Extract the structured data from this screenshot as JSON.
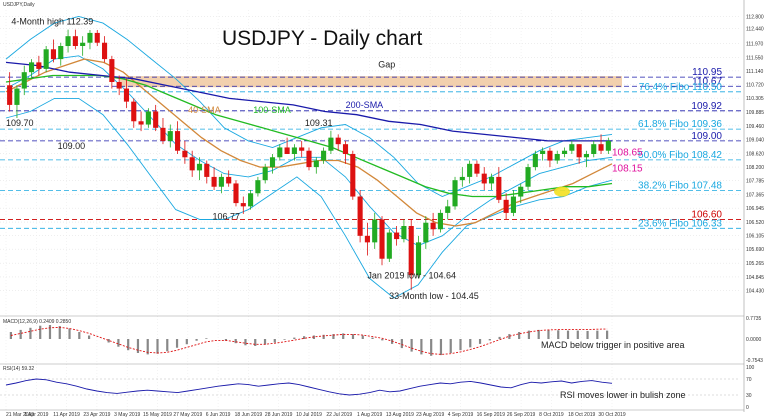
{
  "chart_data": {
    "type": "candlestick",
    "symbol_label": "USDJPY,Daily",
    "title": "USDJPY - Daily chart",
    "date_labels": [
      "21 Mar 2019",
      "1 Apr 2019",
      "11 Apr 2019",
      "23 Apr 2019",
      "3 May 2019",
      "15 May 2019",
      "27 May 2019",
      "6 Jun 2019",
      "18 Jun 2019",
      "28 Jun 2019",
      "10 Jul 2019",
      "22 Jul 2019",
      "1 Aug 2019",
      "13 Aug 2019",
      "23 Aug 2019",
      "4 Sep 2019",
      "16 Sep 2019",
      "26 Sep 2019",
      "8 Oct 2019",
      "18 Oct 2019",
      "30 Oct 2019"
    ],
    "price_axis": [
      112.8,
      112.44,
      111.97,
      111.55,
      111.14,
      110.72,
      110.305,
      109.885,
      109.46,
      109.04,
      108.62,
      108.2,
      107.785,
      107.365,
      106.945,
      106.52,
      106.105,
      105.69,
      105.265,
      104.845,
      104.43
    ],
    "price_range": [
      104.2,
      113.0
    ],
    "levels": [
      {
        "label": "110.95",
        "value": 110.95,
        "color": "#1a1aaa",
        "style": "dashed"
      },
      {
        "label": "110.67",
        "value": 110.67,
        "color": "#1a1aaa",
        "style": "dashed"
      },
      {
        "label": "76.4% Fibo 110.50",
        "value": 110.5,
        "color": "#1aa8e0",
        "style": "dashed"
      },
      {
        "label": "109.92",
        "value": 109.92,
        "color": "#1a1aaa",
        "style": "dashed"
      },
      {
        "label": "61.8% Fibo 109.36",
        "value": 109.36,
        "color": "#1aa8e0",
        "style": "dashed"
      },
      {
        "label": "109.00",
        "value": 109.0,
        "color": "#1a1aaa",
        "style": "dashed"
      },
      {
        "label": "50.0% Fibo 108.42",
        "value": 108.42,
        "color": "#1aa8e0",
        "style": "dashed"
      },
      {
        "label": "38.2% Fibo 107.48",
        "value": 107.48,
        "color": "#1aa8e0",
        "style": "dashed"
      },
      {
        "label": "106.60",
        "value": 106.6,
        "color": "#cc0000",
        "style": "dashed"
      },
      {
        "label": "23.6% Fibo 106.33",
        "value": 106.33,
        "color": "#1aa8e0",
        "style": "dashed"
      }
    ],
    "side_labels": [
      {
        "label": "108.65",
        "value": 108.65,
        "color": "#e0119d"
      },
      {
        "label": "108.15",
        "value": 108.15,
        "color": "#e0119d"
      }
    ],
    "annotations": [
      {
        "text": "4-Month high 112.39",
        "x": "23 Mar 2019",
        "y": 112.55
      },
      {
        "text": "109.70",
        "x": "21 Mar 2019",
        "y": 109.45
      },
      {
        "text": "109.00",
        "x": "9 Apr 2019",
        "y": 108.75
      },
      {
        "text": "106.77",
        "x": "5 Jun 2019",
        "y": 106.6
      },
      {
        "text": "109.31",
        "x": "9 Jul 2019",
        "y": 109.45
      },
      {
        "text": "Jan 2019 low - 104.64",
        "x": "1 Aug 2019",
        "y": 104.8
      },
      {
        "text": "33-Month low - 104.45",
        "x": "9 Aug 2019",
        "y": 104.17
      },
      {
        "text": "Gap",
        "x": "5 Aug 2019",
        "y": 111.25
      }
    ],
    "ma_labels": [
      {
        "text": "40-SMA",
        "color": "#d2883a",
        "x": "27 May 2019",
        "y": 109.85
      },
      {
        "text": "100-SMA",
        "color": "#22bb22",
        "x": "20 Jun 2019",
        "y": 109.85
      },
      {
        "text": "200-SMA",
        "color": "#1a1aaa",
        "x": "24 Jul 2019",
        "y": 110.0
      }
    ],
    "series": [
      {
        "name": "USDJPY",
        "type": "candlestick",
        "ohlc": [
          [
            110.7,
            111.1,
            109.9,
            110.1
          ],
          [
            110.1,
            110.7,
            109.7,
            110.6
          ],
          [
            110.6,
            111.3,
            110.4,
            111.1
          ],
          [
            111.1,
            111.5,
            110.9,
            111.4
          ],
          [
            111.4,
            111.6,
            111.0,
            111.2
          ],
          [
            111.2,
            111.9,
            111.1,
            111.8
          ],
          [
            111.8,
            112.1,
            111.4,
            111.5
          ],
          [
            111.5,
            112.0,
            111.3,
            111.9
          ],
          [
            111.9,
            112.4,
            111.7,
            112.2
          ],
          [
            112.2,
            112.4,
            111.8,
            111.9
          ],
          [
            111.9,
            112.2,
            111.6,
            112.0
          ],
          [
            112.0,
            112.39,
            111.8,
            112.3
          ],
          [
            112.3,
            112.39,
            111.9,
            112.0
          ],
          [
            112.0,
            112.2,
            111.4,
            111.5
          ],
          [
            111.5,
            111.6,
            110.6,
            110.8
          ],
          [
            110.8,
            111.0,
            110.4,
            110.6
          ],
          [
            110.6,
            110.9,
            110.0,
            110.2
          ],
          [
            110.2,
            110.3,
            109.4,
            109.6
          ],
          [
            109.6,
            109.9,
            109.3,
            109.5
          ],
          [
            109.5,
            110.0,
            109.4,
            109.9
          ],
          [
            109.9,
            110.1,
            109.3,
            109.4
          ],
          [
            109.4,
            109.7,
            108.9,
            109.0
          ],
          [
            109.0,
            109.5,
            108.8,
            109.3
          ],
          [
            109.3,
            109.6,
            108.6,
            108.7
          ],
          [
            108.7,
            109.0,
            108.3,
            108.5
          ],
          [
            108.5,
            108.7,
            107.9,
            108.1
          ],
          [
            108.1,
            108.5,
            107.8,
            108.3
          ],
          [
            108.3,
            108.4,
            107.7,
            107.9
          ],
          [
            107.9,
            108.2,
            107.5,
            107.6
          ],
          [
            107.6,
            108.0,
            107.4,
            107.9
          ],
          [
            107.9,
            108.1,
            107.6,
            107.7
          ],
          [
            107.7,
            107.8,
            107.0,
            107.1
          ],
          [
            107.1,
            107.3,
            106.77,
            107.0
          ],
          [
            107.0,
            107.5,
            106.9,
            107.4
          ],
          [
            107.4,
            107.9,
            107.3,
            107.8
          ],
          [
            107.8,
            108.3,
            107.7,
            108.2
          ],
          [
            108.2,
            108.6,
            108.0,
            108.5
          ],
          [
            108.5,
            108.9,
            108.4,
            108.8
          ],
          [
            108.8,
            109.1,
            108.6,
            108.6
          ],
          [
            108.6,
            108.9,
            108.4,
            108.8
          ],
          [
            108.8,
            109.0,
            108.5,
            108.7
          ],
          [
            108.7,
            108.8,
            108.1,
            108.2
          ],
          [
            108.2,
            108.5,
            108.0,
            108.4
          ],
          [
            108.4,
            108.8,
            108.3,
            108.7
          ],
          [
            108.7,
            109.31,
            108.6,
            109.1
          ],
          [
            109.1,
            109.2,
            108.7,
            108.9
          ],
          [
            108.9,
            109.0,
            108.3,
            108.6
          ],
          [
            108.6,
            108.7,
            107.2,
            107.3
          ],
          [
            107.3,
            107.5,
            105.9,
            106.1
          ],
          [
            106.1,
            106.5,
            105.5,
            105.9
          ],
          [
            105.9,
            106.8,
            105.7,
            106.6
          ],
          [
            106.6,
            106.7,
            105.2,
            105.4
          ],
          [
            105.4,
            106.3,
            105.3,
            106.2
          ],
          [
            106.2,
            106.4,
            105.8,
            106.0
          ],
          [
            106.0,
            106.6,
            105.9,
            106.4
          ],
          [
            106.4,
            106.6,
            104.45,
            104.9
          ],
          [
            104.9,
            106.1,
            104.8,
            105.9
          ],
          [
            105.9,
            106.7,
            105.7,
            106.5
          ],
          [
            106.5,
            106.8,
            106.1,
            106.3
          ],
          [
            106.3,
            106.9,
            106.2,
            106.8
          ],
          [
            106.8,
            107.2,
            106.6,
            107.0
          ],
          [
            107.0,
            107.9,
            106.9,
            107.8
          ],
          [
            107.8,
            108.2,
            107.6,
            107.9
          ],
          [
            107.9,
            108.4,
            107.7,
            108.3
          ],
          [
            108.3,
            108.4,
            107.9,
            108.0
          ],
          [
            108.0,
            108.2,
            107.5,
            107.7
          ],
          [
            107.7,
            108.0,
            107.5,
            107.9
          ],
          [
            107.9,
            108.2,
            107.1,
            107.2
          ],
          [
            107.2,
            107.4,
            106.6,
            106.8
          ],
          [
            106.8,
            107.5,
            106.7,
            107.3
          ],
          [
            107.3,
            107.7,
            107.1,
            107.6
          ],
          [
            107.6,
            108.3,
            107.5,
            108.2
          ],
          [
            108.2,
            108.7,
            108.1,
            108.6
          ],
          [
            108.6,
            108.8,
            108.4,
            108.7
          ],
          [
            108.7,
            108.8,
            108.2,
            108.4
          ],
          [
            108.4,
            108.7,
            108.3,
            108.6
          ],
          [
            108.6,
            108.8,
            108.5,
            108.7
          ],
          [
            108.7,
            109.0,
            108.6,
            108.9
          ],
          [
            108.9,
            108.9,
            108.3,
            108.5
          ],
          [
            108.5,
            108.7,
            108.2,
            108.6
          ],
          [
            108.6,
            109.0,
            108.5,
            108.9
          ],
          [
            108.9,
            109.2,
            108.6,
            108.7
          ],
          [
            108.7,
            109.1,
            108.6,
            109.0
          ]
        ]
      },
      {
        "name": "40-SMA",
        "color": "#d2883a",
        "values": [
          110.5,
          110.8,
          111.1,
          111.3,
          111.5,
          111.4,
          111.1,
          110.6,
          110.1,
          109.6,
          109.1,
          108.7,
          108.4,
          108.2,
          108.2,
          108.3,
          108.4,
          108.4,
          108.2,
          107.8,
          107.3,
          106.8,
          106.5,
          106.4,
          106.5,
          106.8,
          107.1,
          107.3,
          107.5,
          107.7,
          108.0,
          108.3
        ]
      },
      {
        "name": "100-SMA",
        "color": "#22bb22",
        "values": [
          110.8,
          110.9,
          111.0,
          111.0,
          111.0,
          110.9,
          110.7,
          110.4,
          110.1,
          109.8,
          109.6,
          109.4,
          109.2,
          109.0,
          108.8,
          108.5,
          108.2,
          107.9,
          107.6,
          107.4,
          107.3,
          107.3,
          107.4,
          107.5,
          107.6,
          107.6,
          107.7
        ]
      },
      {
        "name": "200-SMA",
        "color": "#1a1aaa",
        "values": [
          111.4,
          111.3,
          111.1,
          111.0,
          110.9,
          110.7,
          110.5,
          110.3,
          110.2,
          110.1,
          109.9,
          109.8,
          109.6,
          109.5,
          109.3,
          109.2,
          109.1,
          109.0,
          109.0,
          109.0
        ]
      },
      {
        "name": "Bollinger Upper",
        "color": "#1aa8e0",
        "values": [
          111.5,
          112.1,
          112.6,
          112.8,
          112.6,
          112.1,
          111.5,
          110.9,
          110.2,
          109.4,
          109.0,
          108.8,
          109.1,
          109.4,
          109.5,
          109.1,
          108.5,
          107.7,
          107.3,
          107.6,
          107.9,
          108.3,
          108.7,
          109.0,
          109.1,
          109.2
        ]
      },
      {
        "name": "Bollinger Mid",
        "color": "#1aa8e0",
        "values": [
          110.6,
          111.0,
          111.5,
          111.6,
          111.2,
          110.5,
          109.7,
          108.9,
          108.4,
          108.0,
          107.9,
          108.1,
          108.5,
          108.5,
          107.9,
          107.0,
          106.2,
          105.8,
          106.1,
          106.7,
          107.2,
          107.6,
          108.0,
          108.2,
          108.4,
          108.5
        ]
      },
      {
        "name": "Bollinger Lower",
        "color": "#1aa8e0",
        "values": [
          109.7,
          109.9,
          110.3,
          110.3,
          109.8,
          108.9,
          107.9,
          106.9,
          106.6,
          106.6,
          106.9,
          107.4,
          107.9,
          107.3,
          106.1,
          104.8,
          104.2,
          104.6,
          105.6,
          106.4,
          106.7,
          107.0,
          107.2,
          107.3,
          107.6,
          107.8
        ]
      }
    ],
    "macd": {
      "label": "MACD(12,26,9) 0.2409 0.2850",
      "caption": "MACD below trigger in positive area",
      "histogram": [
        0.2,
        0.26,
        0.32,
        0.38,
        0.4,
        0.37,
        0.3,
        0.2,
        0.1,
        0.0,
        -0.1,
        -0.22,
        -0.32,
        -0.4,
        -0.44,
        -0.42,
        -0.35,
        -0.25,
        -0.15,
        -0.05,
        0.02,
        0.0,
        -0.05,
        -0.12,
        -0.18,
        -0.2,
        -0.16,
        -0.1,
        -0.02,
        0.04,
        0.08,
        0.1,
        0.12,
        0.14,
        0.16,
        0.14,
        0.1,
        0.04,
        -0.04,
        -0.14,
        -0.26,
        -0.36,
        -0.44,
        -0.48,
        -0.46,
        -0.4,
        -0.32,
        -0.24,
        -0.14,
        -0.04,
        0.06,
        0.14,
        0.2,
        0.24,
        0.26,
        0.26,
        0.25,
        0.24,
        0.24,
        0.23,
        0.24,
        0.24
      ],
      "signal": [
        0.1,
        0.16,
        0.22,
        0.28,
        0.32,
        0.33,
        0.3,
        0.24,
        0.16,
        0.06,
        -0.04,
        -0.14,
        -0.24,
        -0.32,
        -0.38,
        -0.4,
        -0.38,
        -0.32,
        -0.24,
        -0.16,
        -0.08,
        -0.04,
        -0.04,
        -0.08,
        -0.12,
        -0.15,
        -0.15,
        -0.12,
        -0.08,
        -0.03,
        0.02,
        0.06,
        0.09,
        0.11,
        0.13,
        0.13,
        0.11,
        0.07,
        0.02,
        -0.06,
        -0.16,
        -0.26,
        -0.35,
        -0.42,
        -0.44,
        -0.42,
        -0.37,
        -0.3,
        -0.22,
        -0.12,
        -0.02,
        0.08,
        0.15,
        0.2,
        0.24,
        0.26,
        0.27,
        0.27,
        0.27,
        0.27,
        0.28,
        0.285
      ],
      "range": [
        -0.6,
        0.6
      ]
    },
    "rsi": {
      "label": "RSI(14) 59.32",
      "caption": "RSI moves lower in bulish zone",
      "values": [
        55,
        60,
        66,
        70,
        68,
        62,
        58,
        52,
        45,
        40,
        36,
        34,
        37,
        40,
        42,
        40,
        38,
        36,
        40,
        44,
        48,
        52,
        55,
        58,
        56,
        52,
        55,
        58,
        60,
        56,
        50,
        44,
        38,
        33,
        30,
        32,
        36,
        42,
        38,
        40,
        46,
        52,
        56,
        60,
        58,
        62,
        64,
        60,
        55,
        50,
        48,
        56,
        62,
        60,
        63,
        65,
        60,
        64,
        66,
        62,
        59.32
      ],
      "range": [
        0,
        100
      ]
    },
    "macd_ticks": [
      "0.7735",
      "0.0000",
      "-0.7543"
    ],
    "rsi_ticks": [
      "100",
      "70",
      "30",
      "0"
    ],
    "colors": {
      "bull": "#22aa22",
      "bear": "#dd1111",
      "gap": "#f0c8a0"
    }
  }
}
